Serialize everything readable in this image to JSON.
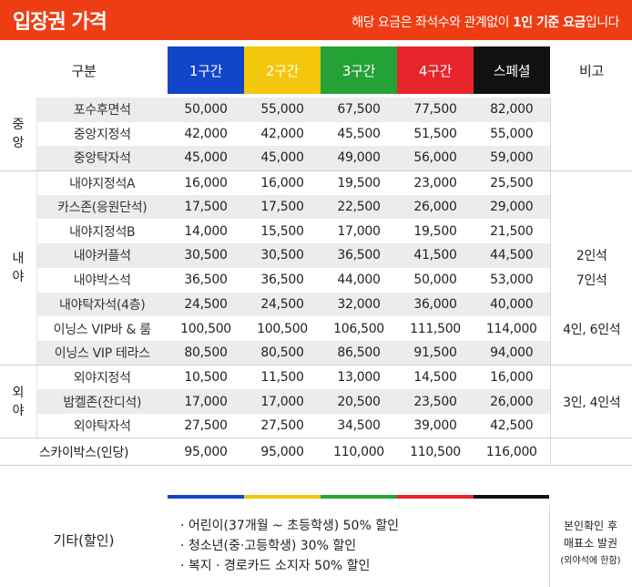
{
  "header": {
    "title": "입장권 가격",
    "note_prefix": "해당 요금은 좌석수와 관계없이 ",
    "note_bold": "1인 기준 요금",
    "note_suffix": "입니다"
  },
  "table": {
    "col_label": "구분",
    "tiers": [
      "1구간",
      "2구간",
      "3구간",
      "4구간",
      "스페셜"
    ],
    "note_label": "비고",
    "zones": {
      "center": "중\n앙",
      "infield": "내\n야",
      "outfield": "외\n야"
    },
    "rows": [
      {
        "seat": "포수후면석",
        "prices": [
          "50,000",
          "55,000",
          "67,500",
          "77,500",
          "82,000"
        ],
        "note": ""
      },
      {
        "seat": "중앙지정석",
        "prices": [
          "42,000",
          "42,000",
          "45,500",
          "51,500",
          "55,000"
        ],
        "note": ""
      },
      {
        "seat": "중앙탁자석",
        "prices": [
          "45,000",
          "45,000",
          "49,000",
          "56,000",
          "59,000"
        ],
        "note": ""
      },
      {
        "seat": "내야지정석A",
        "prices": [
          "16,000",
          "16,000",
          "19,500",
          "23,000",
          "25,500"
        ],
        "note": ""
      },
      {
        "seat": "카스존(응원단석)",
        "prices": [
          "17,500",
          "17,500",
          "22,500",
          "26,000",
          "29,000"
        ],
        "note": ""
      },
      {
        "seat": "내야지정석B",
        "prices": [
          "14,000",
          "15,500",
          "17,000",
          "19,500",
          "21,500"
        ],
        "note": ""
      },
      {
        "seat": "내야커플석",
        "prices": [
          "30,500",
          "30,500",
          "36,500",
          "41,500",
          "44,500"
        ],
        "note": "2인석"
      },
      {
        "seat": "내야박스석",
        "prices": [
          "36,500",
          "36,500",
          "44,000",
          "50,000",
          "53,000"
        ],
        "note": "7인석"
      },
      {
        "seat": "내야탁자석(4층)",
        "prices": [
          "24,500",
          "24,500",
          "32,000",
          "36,000",
          "40,000"
        ],
        "note": ""
      },
      {
        "seat": "이닝스 VIP바 & 룸",
        "prices": [
          "100,500",
          "100,500",
          "106,500",
          "111,500",
          "114,000"
        ],
        "note": "4인, 6인석"
      },
      {
        "seat": "이닝스 VIP 테라스",
        "prices": [
          "80,500",
          "80,500",
          "86,500",
          "91,500",
          "94,000"
        ],
        "note": ""
      },
      {
        "seat": "외야지정석",
        "prices": [
          "10,500",
          "11,500",
          "13,000",
          "14,500",
          "16,000"
        ],
        "note": ""
      },
      {
        "seat": "밤켈존(잔디석)",
        "prices": [
          "17,000",
          "17,000",
          "20,500",
          "23,500",
          "26,000"
        ],
        "note": "3인, 4인석"
      },
      {
        "seat": "외야탁자석",
        "prices": [
          "27,500",
          "27,500",
          "34,500",
          "39,000",
          "42,500"
        ],
        "note": ""
      },
      {
        "seat": "스카이박스(인당)",
        "prices": [
          "95,000",
          "95,000",
          "110,000",
          "110,500",
          "116,000"
        ],
        "note": ""
      }
    ]
  },
  "misc": {
    "label": "기타(할인)",
    "items": [
      "· 어린이(37개월 ~ 초등학생) 50% 할인",
      "· 청소년(중·고등학생) 30% 할인",
      "· 복지 · 경로카드 소지자 50% 할인"
    ],
    "note_line1": "본인확인 후",
    "note_line2": "매표소 발권",
    "note_line3": "(외야석에 한함)"
  },
  "colors": {
    "header": "#ee3d12",
    "tier1": "#1245c8",
    "tier2": "#f4c60c",
    "tier3": "#25a236",
    "tier4": "#e8242c",
    "special": "#111111",
    "row_shade": "#ececec"
  }
}
